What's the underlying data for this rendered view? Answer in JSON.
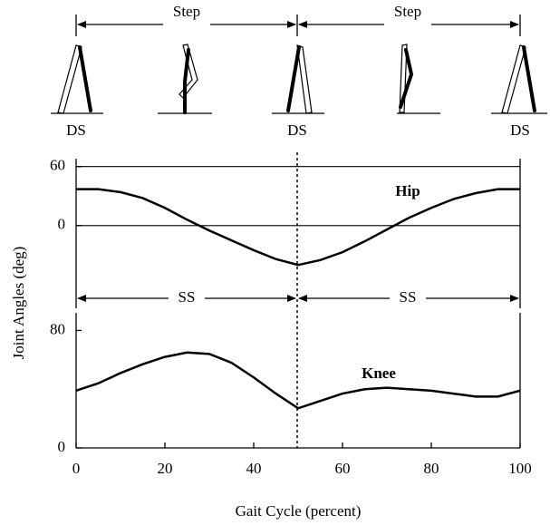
{
  "chart_data": {
    "type": "line",
    "x": [
      0,
      5,
      10,
      15,
      20,
      25,
      30,
      35,
      40,
      45,
      50,
      55,
      60,
      65,
      70,
      75,
      80,
      85,
      90,
      95,
      100
    ],
    "xlim": [
      0,
      100
    ],
    "xticks": [
      0,
      20,
      40,
      60,
      80,
      100
    ],
    "xlabel": "Gait Cycle (percent)",
    "ylabel": "Joint Angles (deg)",
    "color": "#000000",
    "panels": [
      {
        "name": "Hip",
        "ylim": [
          -84,
          68
        ],
        "yticks": [
          0,
          60
        ],
        "values": [
          37,
          37,
          34,
          28,
          18,
          6,
          -5,
          -15,
          -25,
          -34,
          -40,
          -35,
          -27,
          -16,
          -4,
          8,
          18,
          27,
          33,
          37,
          37
        ]
      },
      {
        "name": "Knee",
        "ylim": [
          0,
          92
        ],
        "yticks": [
          0,
          80
        ],
        "values": [
          39,
          44,
          51,
          57,
          62,
          65,
          64,
          58,
          48,
          37,
          27,
          32,
          37,
          40,
          41,
          40,
          39,
          37,
          35,
          35,
          39
        ]
      }
    ],
    "annotations": {
      "steps": [
        "Step",
        "Step"
      ],
      "double_support": [
        "DS",
        "DS",
        "DS"
      ],
      "single_support": [
        "SS",
        "SS"
      ]
    }
  }
}
